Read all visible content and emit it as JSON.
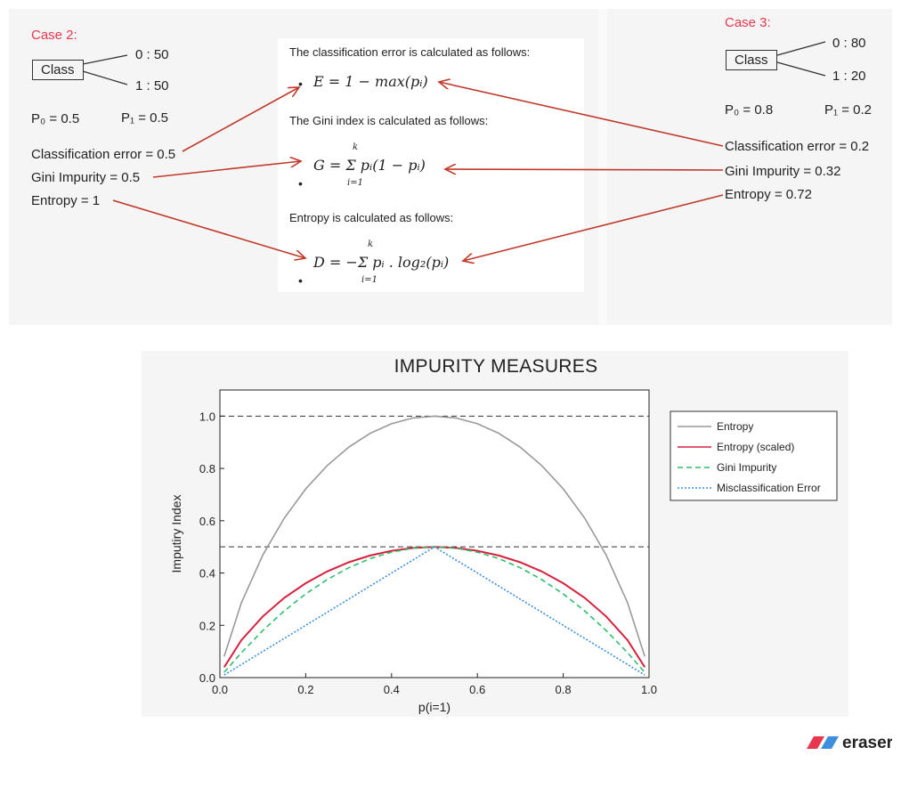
{
  "case2": {
    "title": "Case 2:",
    "class_label": "Class",
    "split_top": "0 : 50",
    "split_bottom": "1 : 50",
    "p0": "P₀ = 0.5",
    "p1": "P₁ = 0.5",
    "classification_error": "Classification error = 0.5",
    "gini": "Gini Impurity = 0.5",
    "entropy": "Entropy = 1"
  },
  "case3": {
    "title": "Case 3:",
    "class_label": "Class",
    "split_top": "0 : 80",
    "split_bottom": "1 : 20",
    "p0": "P₀ = 0.8",
    "p1": "P₁ = 0.2",
    "classification_error": "Classification error = 0.2",
    "gini": "Gini Impurity = 0.32",
    "entropy": "Entropy = 0.72"
  },
  "formulas": {
    "error_intro": "The classification error is calculated as follows:",
    "error_eq": "E = 1 − max(pᵢ)",
    "gini_intro": "The Gini index is calculated as follows:",
    "gini_eq": "G = Σ pᵢ(1 − pᵢ)",
    "entropy_intro": "Entropy is calculated as follows:",
    "entropy_eq": "D = −Σ pᵢ . log₂(pᵢ)",
    "sum_upper": "k",
    "sum_lower": "i=1"
  },
  "colors": {
    "accent_red": "#e8364f",
    "arrow": "#c0392b",
    "entropy": "#999999",
    "entropy_scaled": "#d6223e",
    "gini": "#2fbf6a",
    "misclassification": "#3c8fdd"
  },
  "chart_data": {
    "type": "line",
    "title": "IMPURITY MEASURES",
    "xlabel": "p(i=1)",
    "ylabel": "Imputiry Index",
    "xlim": [
      0.0,
      1.0
    ],
    "ylim": [
      0.0,
      1.1
    ],
    "xticks": [
      "0.0",
      "0.2",
      "0.4",
      "0.6",
      "0.8",
      "1.0"
    ],
    "yticks": [
      "0.0",
      "0.2",
      "0.4",
      "0.6",
      "0.8",
      "1.0"
    ],
    "reference_lines": [
      0.5,
      1.0
    ],
    "legend_position": "top-right",
    "x": [
      0.01,
      0.05,
      0.1,
      0.15,
      0.2,
      0.25,
      0.3,
      0.35,
      0.4,
      0.45,
      0.5,
      0.55,
      0.6,
      0.65,
      0.7,
      0.75,
      0.8,
      0.85,
      0.9,
      0.95,
      0.99
    ],
    "series": [
      {
        "name": "Entropy",
        "style": "solid",
        "color": "#999999",
        "values": [
          0.081,
          0.286,
          0.469,
          0.61,
          0.722,
          0.811,
          0.881,
          0.934,
          0.971,
          0.993,
          1.0,
          0.993,
          0.971,
          0.934,
          0.881,
          0.811,
          0.722,
          0.61,
          0.469,
          0.286,
          0.081
        ]
      },
      {
        "name": "Entropy (scaled)",
        "style": "solid",
        "color": "#d6223e",
        "values": [
          0.04,
          0.143,
          0.234,
          0.305,
          0.361,
          0.406,
          0.441,
          0.467,
          0.485,
          0.496,
          0.5,
          0.496,
          0.485,
          0.467,
          0.441,
          0.406,
          0.361,
          0.305,
          0.234,
          0.143,
          0.04
        ]
      },
      {
        "name": "Gini Impurity",
        "style": "dashed",
        "color": "#2fbf6a",
        "values": [
          0.02,
          0.095,
          0.18,
          0.255,
          0.32,
          0.375,
          0.42,
          0.455,
          0.48,
          0.495,
          0.5,
          0.495,
          0.48,
          0.455,
          0.42,
          0.375,
          0.32,
          0.255,
          0.18,
          0.095,
          0.02
        ]
      },
      {
        "name": "Misclassification Error",
        "style": "dotted",
        "color": "#3c8fdd",
        "values": [
          0.01,
          0.05,
          0.1,
          0.15,
          0.2,
          0.25,
          0.3,
          0.35,
          0.4,
          0.45,
          0.5,
          0.45,
          0.4,
          0.35,
          0.3,
          0.25,
          0.2,
          0.15,
          0.1,
          0.05,
          0.01
        ]
      }
    ]
  },
  "logo": {
    "text": "eraser"
  }
}
